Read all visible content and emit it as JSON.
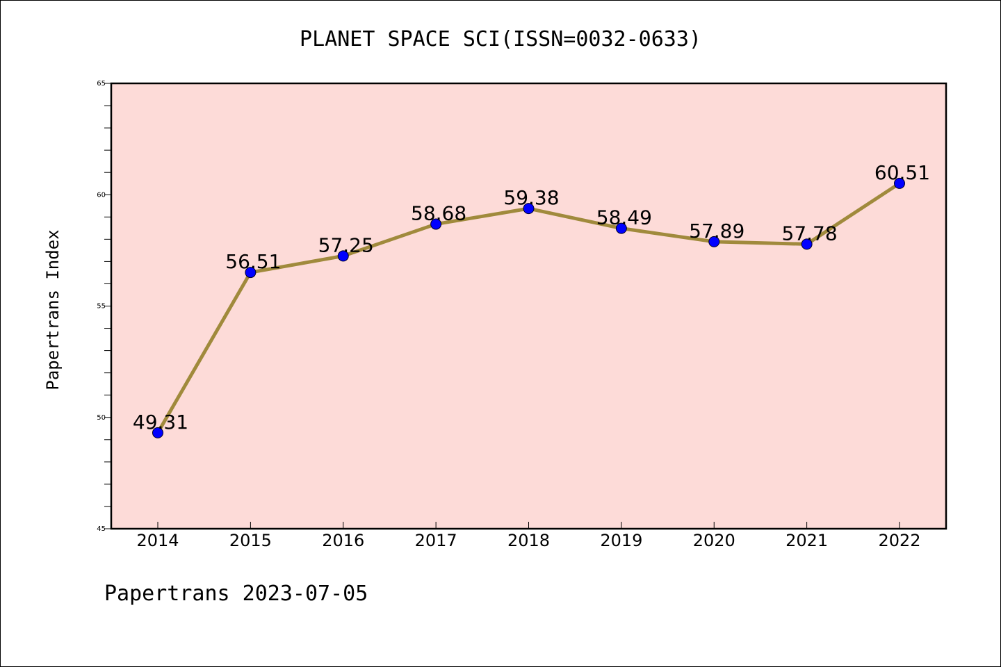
{
  "chart_data": {
    "type": "line",
    "title": "PLANET SPACE SCI(ISSN=0032-0633)",
    "xlabel": "",
    "ylabel": "Papertrans Index",
    "footer": "Papertrans 2023-07-05",
    "categories": [
      "2014",
      "2015",
      "2016",
      "2017",
      "2018",
      "2019",
      "2020",
      "2021",
      "2022"
    ],
    "series": [
      {
        "values": [
          49.31,
          56.51,
          57.25,
          58.68,
          59.38,
          58.49,
          57.89,
          57.78,
          60.51
        ],
        "labels": [
          "49.31",
          "56.51",
          "57.25",
          "58.68",
          "59.38",
          "58.49",
          "57.89",
          "57.78",
          "60.51"
        ]
      }
    ],
    "ylim": [
      45,
      65
    ],
    "yticks": [
      "45",
      "50",
      "55",
      "60",
      "65"
    ],
    "minor_tick_step": 1,
    "grid": false,
    "legend": "none",
    "colors": {
      "plot_background": "#fddbd8",
      "line": "#a08a3c",
      "marker": "#0000ff",
      "axis": "#000000"
    }
  }
}
